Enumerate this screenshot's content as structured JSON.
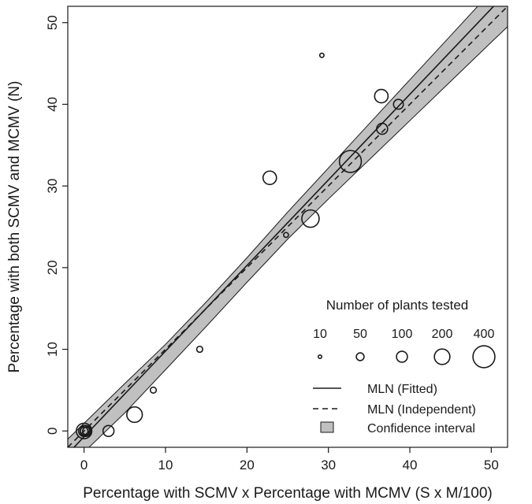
{
  "chart_data": {
    "type": "scatter",
    "title": "",
    "xlabel": "Percentage with SCMV x Percentage with MCMV (S x M/100)",
    "ylabel": "Percentage with both SCMV and MCMV (N)",
    "xlim": [
      -2,
      52
    ],
    "ylim": [
      -2,
      52
    ],
    "x_ticks": [
      0,
      10,
      20,
      30,
      40,
      50
    ],
    "y_ticks": [
      0,
      10,
      20,
      30,
      40,
      50
    ],
    "grid": false,
    "legend_placement": "bottom-right",
    "points": [
      {
        "x": 0,
        "y": 0,
        "n": 50
      },
      {
        "x": 0,
        "y": 0,
        "n": 100
      },
      {
        "x": 0,
        "y": 0,
        "n": 200
      },
      {
        "x": 0.2,
        "y": 0,
        "n": 100
      },
      {
        "x": 0.3,
        "y": 0,
        "n": 50
      },
      {
        "x": 3,
        "y": 0,
        "n": 100
      },
      {
        "x": 6.2,
        "y": 2,
        "n": 200
      },
      {
        "x": 8.5,
        "y": 5,
        "n": 30
      },
      {
        "x": 14.2,
        "y": 10,
        "n": 30
      },
      {
        "x": 22.8,
        "y": 31,
        "n": 150
      },
      {
        "x": 24.8,
        "y": 24,
        "n": 20
      },
      {
        "x": 27.8,
        "y": 26,
        "n": 250
      },
      {
        "x": 29.2,
        "y": 46,
        "n": 15
      },
      {
        "x": 32.7,
        "y": 33,
        "n": 400
      },
      {
        "x": 36.5,
        "y": 41,
        "n": 150
      },
      {
        "x": 36.6,
        "y": 37,
        "n": 100
      },
      {
        "x": 38.6,
        "y": 40,
        "n": 80
      }
    ],
    "fitted_line": {
      "x": [
        -2,
        52
      ],
      "y": [
        -2.8,
        53.8
      ]
    },
    "independent_line": {
      "x": [
        -2,
        52
      ],
      "y": [
        -2,
        52
      ]
    },
    "confidence_interval": {
      "x": [
        -2,
        5,
        10,
        15,
        20,
        25,
        30,
        35,
        40,
        45,
        50,
        52
      ],
      "lower": [
        -4.5,
        2.2,
        7.5,
        12.8,
        18.2,
        23.5,
        28.4,
        33.2,
        38.0,
        42.8,
        47.6,
        49.5
      ],
      "upper": [
        -1.0,
        5.8,
        10.6,
        15.8,
        21.2,
        26.8,
        32.2,
        37.6,
        43.0,
        48.4,
        53.8,
        56.0
      ]
    },
    "legend": {
      "title": "Number of plants tested",
      "size_values": [
        10,
        50,
        100,
        200,
        400
      ],
      "size_labels": [
        "10",
        "50",
        "100",
        "200",
        "400"
      ],
      "entries": [
        {
          "label": "MLN (Fitted)",
          "style": "solid"
        },
        {
          "label": "MLN (Independent)",
          "style": "dashed"
        },
        {
          "label": "Confidence interval",
          "style": "fill"
        }
      ]
    },
    "colors": {
      "band": "#c0c0c0",
      "line": "#1a1a1a",
      "point": "#1a1a1a"
    }
  }
}
